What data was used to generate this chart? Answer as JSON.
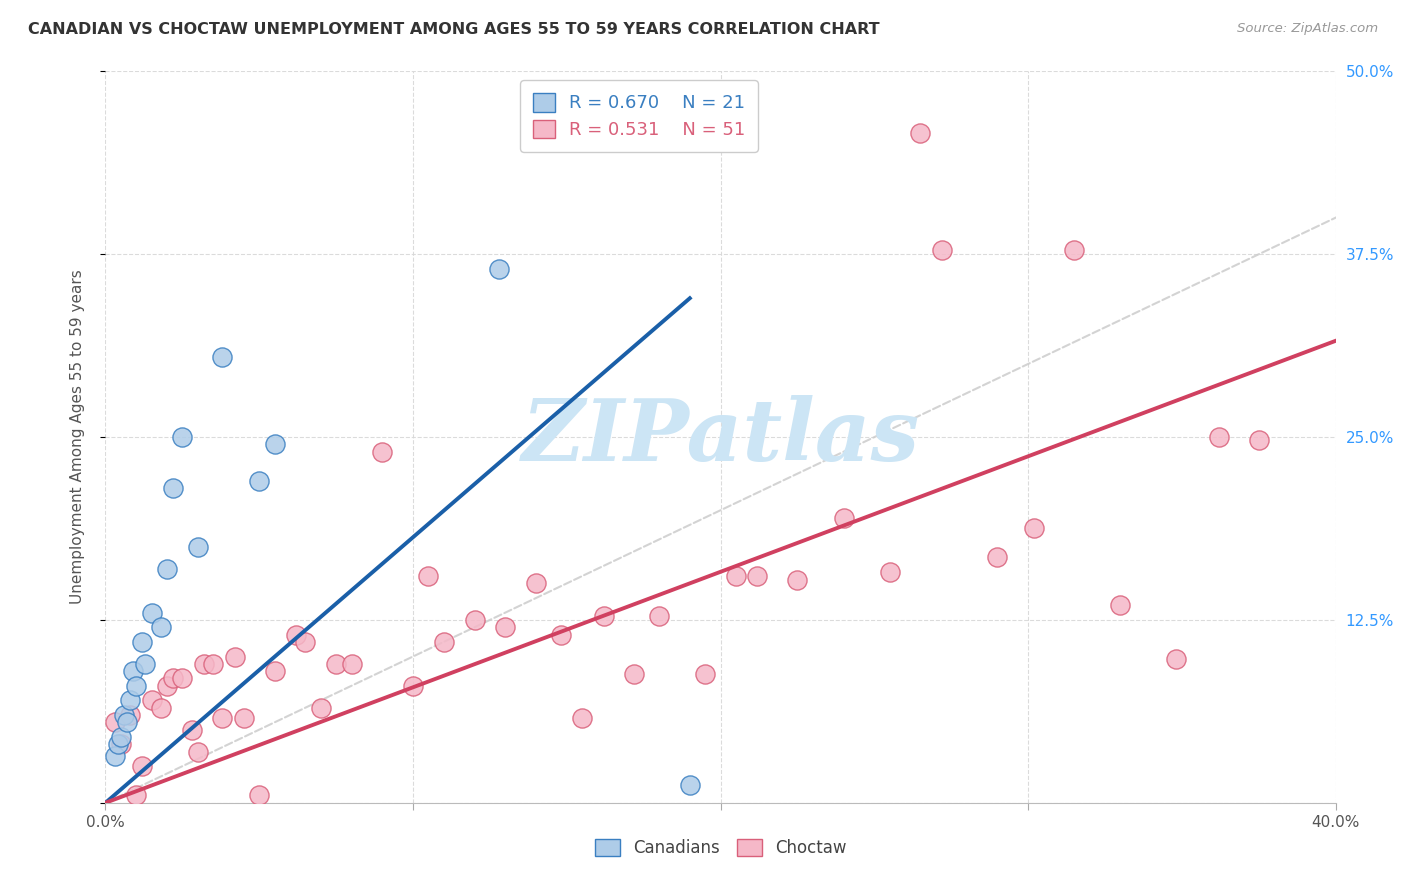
{
  "title": "CANADIAN VS CHOCTAW UNEMPLOYMENT AMONG AGES 55 TO 59 YEARS CORRELATION CHART",
  "source": "Source: ZipAtlas.com",
  "ylabel": "Unemployment Among Ages 55 to 59 years",
  "xlim": [
    0.0,
    0.4
  ],
  "ylim": [
    0.0,
    0.5
  ],
  "xtick_positions": [
    0.0,
    0.1,
    0.2,
    0.3,
    0.4
  ],
  "xticklabels_show": [
    "0.0%",
    "",
    "",
    "",
    "40.0%"
  ],
  "ytick_positions": [
    0.0,
    0.125,
    0.25,
    0.375,
    0.5
  ],
  "yticklabels_right": [
    "",
    "12.5%",
    "25.0%",
    "37.5%",
    "50.0%"
  ],
  "canadians_R": "0.670",
  "canadians_N": "21",
  "choctaw_R": "0.531",
  "choctaw_N": "51",
  "canadian_fill": "#aecce8",
  "choctaw_fill": "#f5b8c8",
  "canadian_edge": "#3a7fc1",
  "choctaw_edge": "#d9607a",
  "canadian_line": "#1a5fa8",
  "choctaw_line": "#d04060",
  "ref_line_color": "#cccccc",
  "watermark_text": "ZIPatlas",
  "watermark_color": "#cce5f5",
  "background_color": "#ffffff",
  "title_color": "#333333",
  "source_color": "#999999",
  "tick_label_color": "#555555",
  "right_tick_color": "#3399ff",
  "canadians_x": [
    0.003,
    0.004,
    0.005,
    0.006,
    0.007,
    0.008,
    0.009,
    0.01,
    0.012,
    0.013,
    0.015,
    0.018,
    0.02,
    0.022,
    0.025,
    0.03,
    0.038,
    0.05,
    0.055,
    0.128,
    0.19
  ],
  "canadians_y": [
    0.032,
    0.04,
    0.045,
    0.06,
    0.055,
    0.07,
    0.09,
    0.08,
    0.11,
    0.095,
    0.13,
    0.12,
    0.16,
    0.215,
    0.25,
    0.175,
    0.305,
    0.22,
    0.245,
    0.365,
    0.012
  ],
  "choctaw_x": [
    0.003,
    0.005,
    0.008,
    0.01,
    0.012,
    0.015,
    0.018,
    0.02,
    0.022,
    0.025,
    0.028,
    0.03,
    0.032,
    0.035,
    0.038,
    0.042,
    0.045,
    0.05,
    0.055,
    0.062,
    0.065,
    0.07,
    0.075,
    0.08,
    0.09,
    0.1,
    0.105,
    0.11,
    0.12,
    0.13,
    0.14,
    0.148,
    0.155,
    0.162,
    0.172,
    0.18,
    0.195,
    0.205,
    0.212,
    0.225,
    0.24,
    0.255,
    0.265,
    0.272,
    0.29,
    0.302,
    0.315,
    0.33,
    0.348,
    0.362,
    0.375
  ],
  "choctaw_y": [
    0.055,
    0.04,
    0.06,
    0.005,
    0.025,
    0.07,
    0.065,
    0.08,
    0.085,
    0.085,
    0.05,
    0.035,
    0.095,
    0.095,
    0.058,
    0.1,
    0.058,
    0.005,
    0.09,
    0.115,
    0.11,
    0.065,
    0.095,
    0.095,
    0.24,
    0.08,
    0.155,
    0.11,
    0.125,
    0.12,
    0.15,
    0.115,
    0.058,
    0.128,
    0.088,
    0.128,
    0.088,
    0.155,
    0.155,
    0.152,
    0.195,
    0.158,
    0.458,
    0.378,
    0.168,
    0.188,
    0.378,
    0.135,
    0.098,
    0.25,
    0.248
  ]
}
